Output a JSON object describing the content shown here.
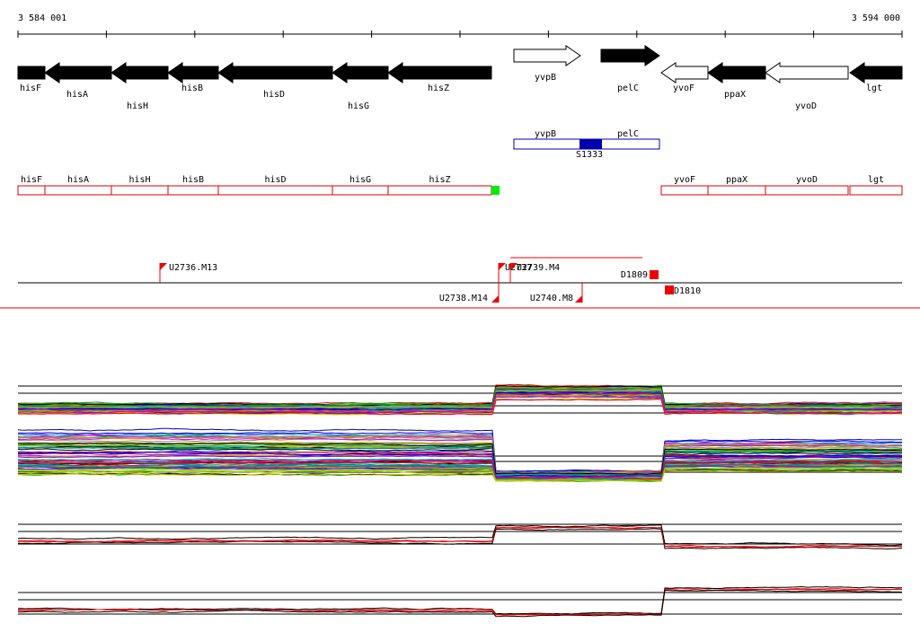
{
  "ruler": {
    "start": "3 584 001",
    "end": "3 594 000"
  },
  "genes": [
    {
      "label": "hisF"
    },
    {
      "label": "hisA"
    },
    {
      "label": "hisH"
    },
    {
      "label": "hisB"
    },
    {
      "label": "hisD"
    },
    {
      "label": "hisG"
    },
    {
      "label": "hisZ"
    },
    {
      "label": "yvpB"
    },
    {
      "label": "pelC"
    },
    {
      "label": "yvoF"
    },
    {
      "label": "ppaX"
    },
    {
      "label": "yvoD"
    },
    {
      "label": "lgt"
    }
  ],
  "transcript": {
    "left_label": "yvpB",
    "right_label": "pelC",
    "name": "S1333"
  },
  "segments": [
    {
      "label": "hisF"
    },
    {
      "label": "hisA"
    },
    {
      "label": "hisH"
    },
    {
      "label": "hisB"
    },
    {
      "label": "hisD"
    },
    {
      "label": "hisG"
    },
    {
      "label": "hisZ"
    },
    {
      "label": "yvoF"
    },
    {
      "label": "ppaX"
    },
    {
      "label": "yvoD"
    },
    {
      "label": "lgt"
    }
  ],
  "markers": [
    {
      "label": "U2736.M13"
    },
    {
      "label": "U2737"
    },
    {
      "label": "U2739.M4"
    },
    {
      "label": "U2738.M14"
    },
    {
      "label": "U2740.M8"
    },
    {
      "label": "D1809"
    },
    {
      "label": "D1810"
    }
  ]
}
